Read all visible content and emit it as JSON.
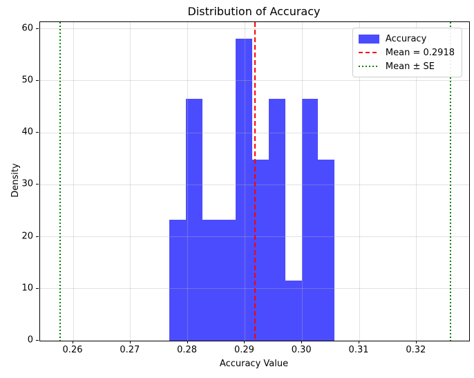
{
  "chart_data": {
    "type": "bar",
    "subtype": "histogram",
    "title": "Distribution of Accuracy",
    "xlabel": "Accuracy Value",
    "ylabel": "Density",
    "xlim": [
      0.2542,
      0.3292
    ],
    "ylim": [
      0,
      61.3
    ],
    "grid": true,
    "x_ticks": [
      0.26,
      0.27,
      0.28,
      0.29,
      0.3,
      0.31,
      0.32
    ],
    "x_tick_labels": [
      "0.26",
      "0.27",
      "0.28",
      "0.29",
      "0.30",
      "0.31",
      "0.32"
    ],
    "y_ticks": [
      0,
      10,
      20,
      30,
      40,
      50,
      60
    ],
    "y_tick_labels": [
      "0",
      "10",
      "20",
      "30",
      "40",
      "50",
      "60"
    ],
    "histogram": {
      "series_name": "Accuracy",
      "bin_start": 0.2768,
      "bin_width": 0.00289,
      "densities": [
        23.24,
        46.48,
        23.24,
        23.24,
        58.1,
        34.86,
        46.48,
        11.62,
        46.48,
        34.86
      ],
      "fill_color": "rgba(0,0,255,0.7)",
      "fill_color_hex": "#4D4DFF"
    },
    "vlines": [
      {
        "x": 0.2918,
        "style": "dashed",
        "color": "#ff0000",
        "meaning": "mean"
      },
      {
        "x": 0.2577,
        "style": "dotted",
        "color": "#008000",
        "meaning": "mean-minus-se"
      },
      {
        "x": 0.3259,
        "style": "dotted",
        "color": "#008000",
        "meaning": "mean-plus-se"
      }
    ],
    "mean": 0.2918,
    "legend": {
      "position": "upper right",
      "entries": [
        {
          "label": "Accuracy",
          "swatch": "patch",
          "color": "rgba(0,0,255,0.7)"
        },
        {
          "label": "Mean = 0.2918",
          "swatch": "dashed-line",
          "color": "#ff0000"
        },
        {
          "label": "Mean ± SE",
          "swatch": "dotted-line",
          "color": "#008000"
        }
      ]
    }
  }
}
